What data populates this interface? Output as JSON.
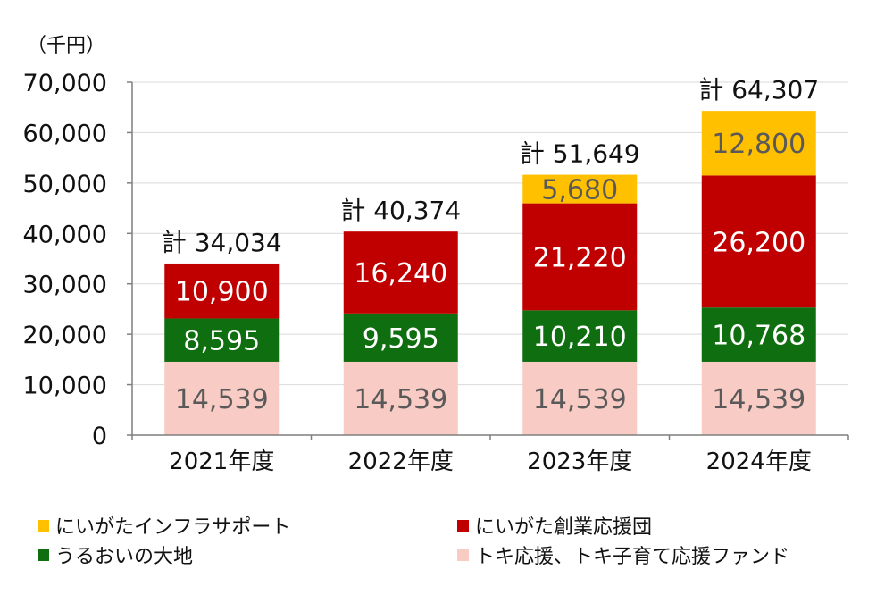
{
  "chart_data": {
    "type": "bar",
    "stacked": true,
    "unit_label": "（千円）",
    "categories": [
      "2021年度",
      "2022年度",
      "2023年度",
      "2024年度"
    ],
    "ylim": [
      0,
      70000
    ],
    "yticks": [
      "0",
      "10,000",
      "20,000",
      "30,000",
      "40,000",
      "50,000",
      "60,000",
      "70,000"
    ],
    "ytick_values": [
      0,
      10000,
      20000,
      30000,
      40000,
      50000,
      60000,
      70000
    ],
    "grid": true,
    "series": [
      {
        "name": "トキ応援、トキ子育て応援ファンド",
        "color": "#F8CBC4",
        "text_color": "#595959",
        "values": [
          14539,
          14539,
          14539,
          14539
        ],
        "labels": [
          "14,539",
          "14,539",
          "14,539",
          "14,539"
        ]
      },
      {
        "name": "うるおいの大地",
        "color": "#0F6E0F",
        "text_color": "#ffffff",
        "values": [
          8595,
          9595,
          10210,
          10768
        ],
        "labels": [
          "8,595",
          "9,595",
          "10,210",
          "10,768"
        ]
      },
      {
        "name": "にいがた創業応援団",
        "color": "#C00000",
        "text_color": "#ffffff",
        "values": [
          10900,
          16240,
          21220,
          26200
        ],
        "labels": [
          "10,900",
          "16,240",
          "21,220",
          "26,200"
        ]
      },
      {
        "name": "にいがたインフラサポート",
        "color": "#FFC000",
        "text_color": "#595959",
        "values": [
          0,
          0,
          5680,
          12800
        ],
        "labels": [
          "",
          "",
          "5,680",
          "12,800"
        ]
      }
    ],
    "totals": [
      34034,
      40374,
      51649,
      64307
    ],
    "total_labels": [
      "計 34,034",
      "計 40,374",
      "計 51,649",
      "計 64,307"
    ],
    "legend": [
      {
        "name": "にいがたインフラサポート",
        "color": "#FFC000"
      },
      {
        "name": "にいがた創業応援団",
        "color": "#C00000"
      },
      {
        "name": "うるおいの大地",
        "color": "#0F6E0F"
      },
      {
        "name": "トキ応援、トキ子育て応援ファンド",
        "color": "#F8CBC4"
      }
    ],
    "legend_placement": "bottom"
  }
}
